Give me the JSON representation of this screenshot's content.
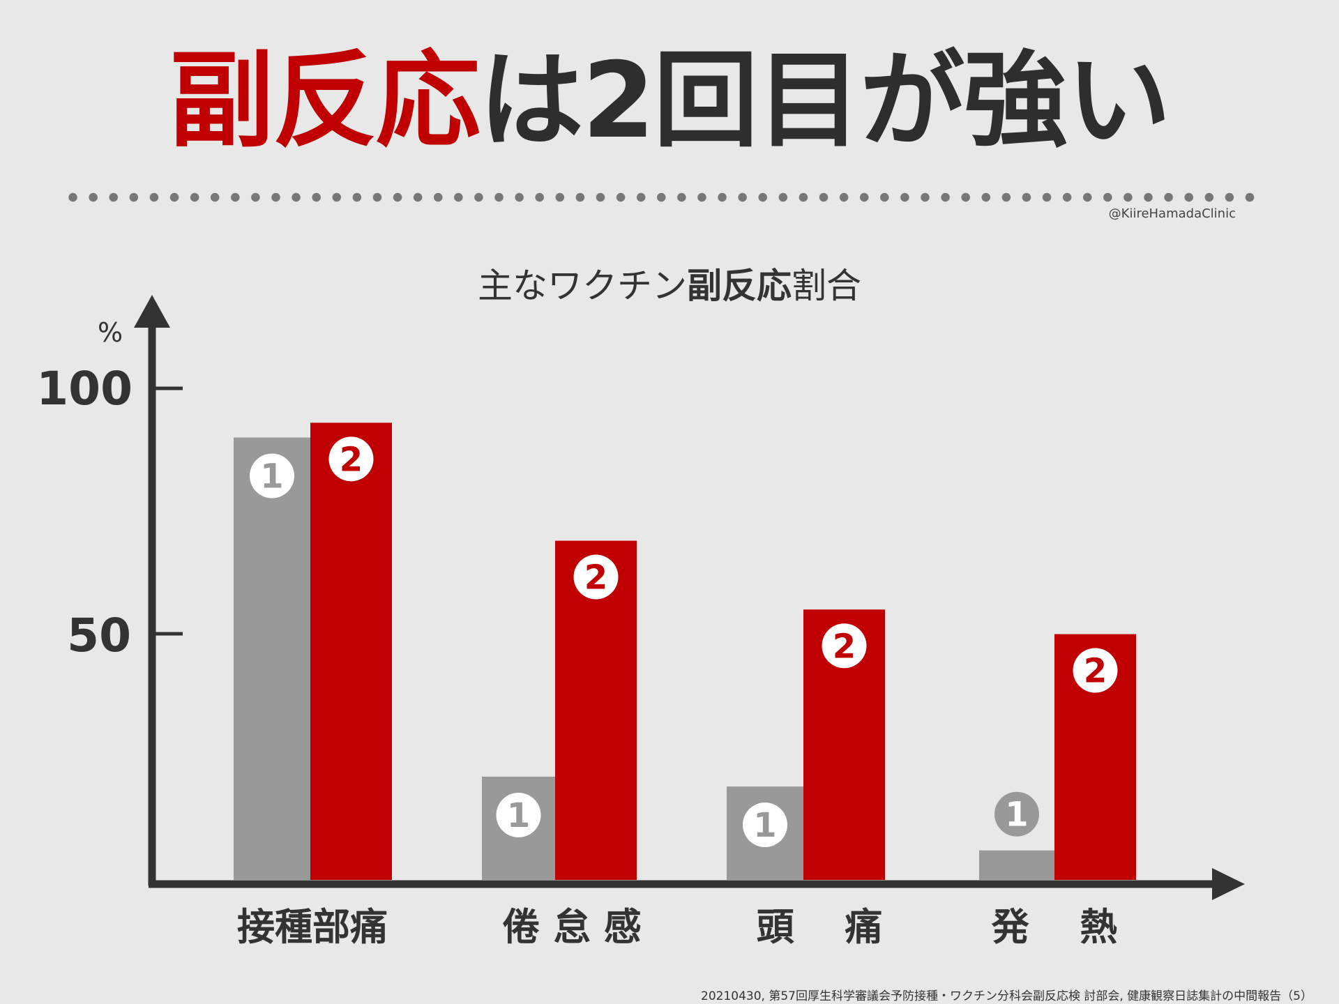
{
  "header": {
    "title_red": "副反応",
    "title_rest": "は2回目が強い",
    "credit": "@KiireHamadaClinic"
  },
  "subtitle": {
    "pre": "主なワクチン",
    "bold": "副反応",
    "post": "割合"
  },
  "footer": "20210430, 第57回厚生科学審議会予防接種・ワクチン分科会副反応検 討部会, 健康観察日誌集計の中間報告（5）",
  "colors": {
    "dose1": "#999999",
    "dose2": "#c00000",
    "axis": "#333333"
  },
  "chart_data": {
    "type": "bar",
    "ylabel": "%",
    "yticks": [
      "100",
      "50"
    ],
    "ylim": [
      0,
      100
    ],
    "categories": [
      "接種部痛",
      "倦 怠 感",
      "頭　 痛",
      "発　 熱"
    ],
    "series": [
      {
        "marker": "1",
        "values": [
          90,
          21,
          19,
          6
        ]
      },
      {
        "marker": "2",
        "values": [
          93,
          69,
          55,
          50
        ]
      }
    ]
  }
}
